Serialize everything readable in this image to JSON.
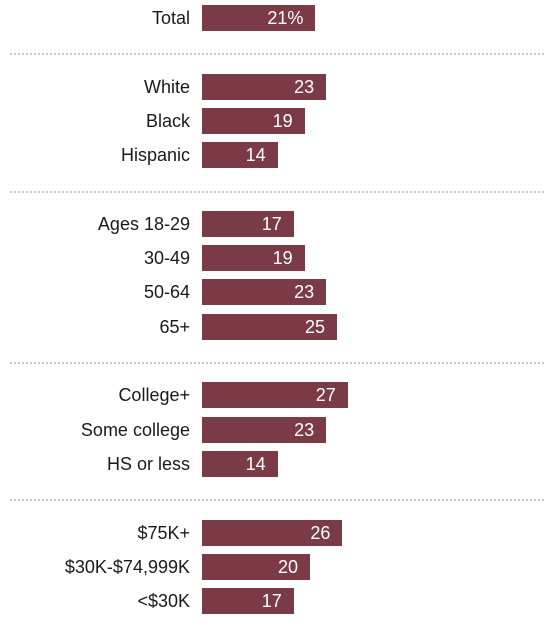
{
  "chart_data": {
    "type": "bar",
    "orientation": "horizontal",
    "bar_color": "#7a3b47",
    "value_label_color": "#ffffff",
    "divider_color": "#c8c8c8",
    "xlim": [
      0,
      30
    ],
    "groups": [
      {
        "rows": [
          {
            "category": "Total",
            "value": 21,
            "label": "21%"
          }
        ]
      },
      {
        "rows": [
          {
            "category": "White",
            "value": 23,
            "label": "23"
          },
          {
            "category": "Black",
            "value": 19,
            "label": "19"
          },
          {
            "category": "Hispanic",
            "value": 14,
            "label": "14"
          }
        ]
      },
      {
        "rows": [
          {
            "category": "Ages 18-29",
            "value": 17,
            "label": "17"
          },
          {
            "category": "30-49",
            "value": 19,
            "label": "19"
          },
          {
            "category": "50-64",
            "value": 23,
            "label": "23"
          },
          {
            "category": "65+",
            "value": 25,
            "label": "25"
          }
        ]
      },
      {
        "rows": [
          {
            "category": "College+",
            "value": 27,
            "label": "27"
          },
          {
            "category": "Some college",
            "value": 23,
            "label": "23"
          },
          {
            "category": "HS or less",
            "value": 14,
            "label": "14"
          }
        ]
      },
      {
        "rows": [
          {
            "category": "$75K+",
            "value": 26,
            "label": "26"
          },
          {
            "category": "$30K-$74,999K",
            "value": 20,
            "label": "20"
          },
          {
            "category": "<$30K",
            "value": 17,
            "label": "17"
          }
        ]
      }
    ]
  }
}
